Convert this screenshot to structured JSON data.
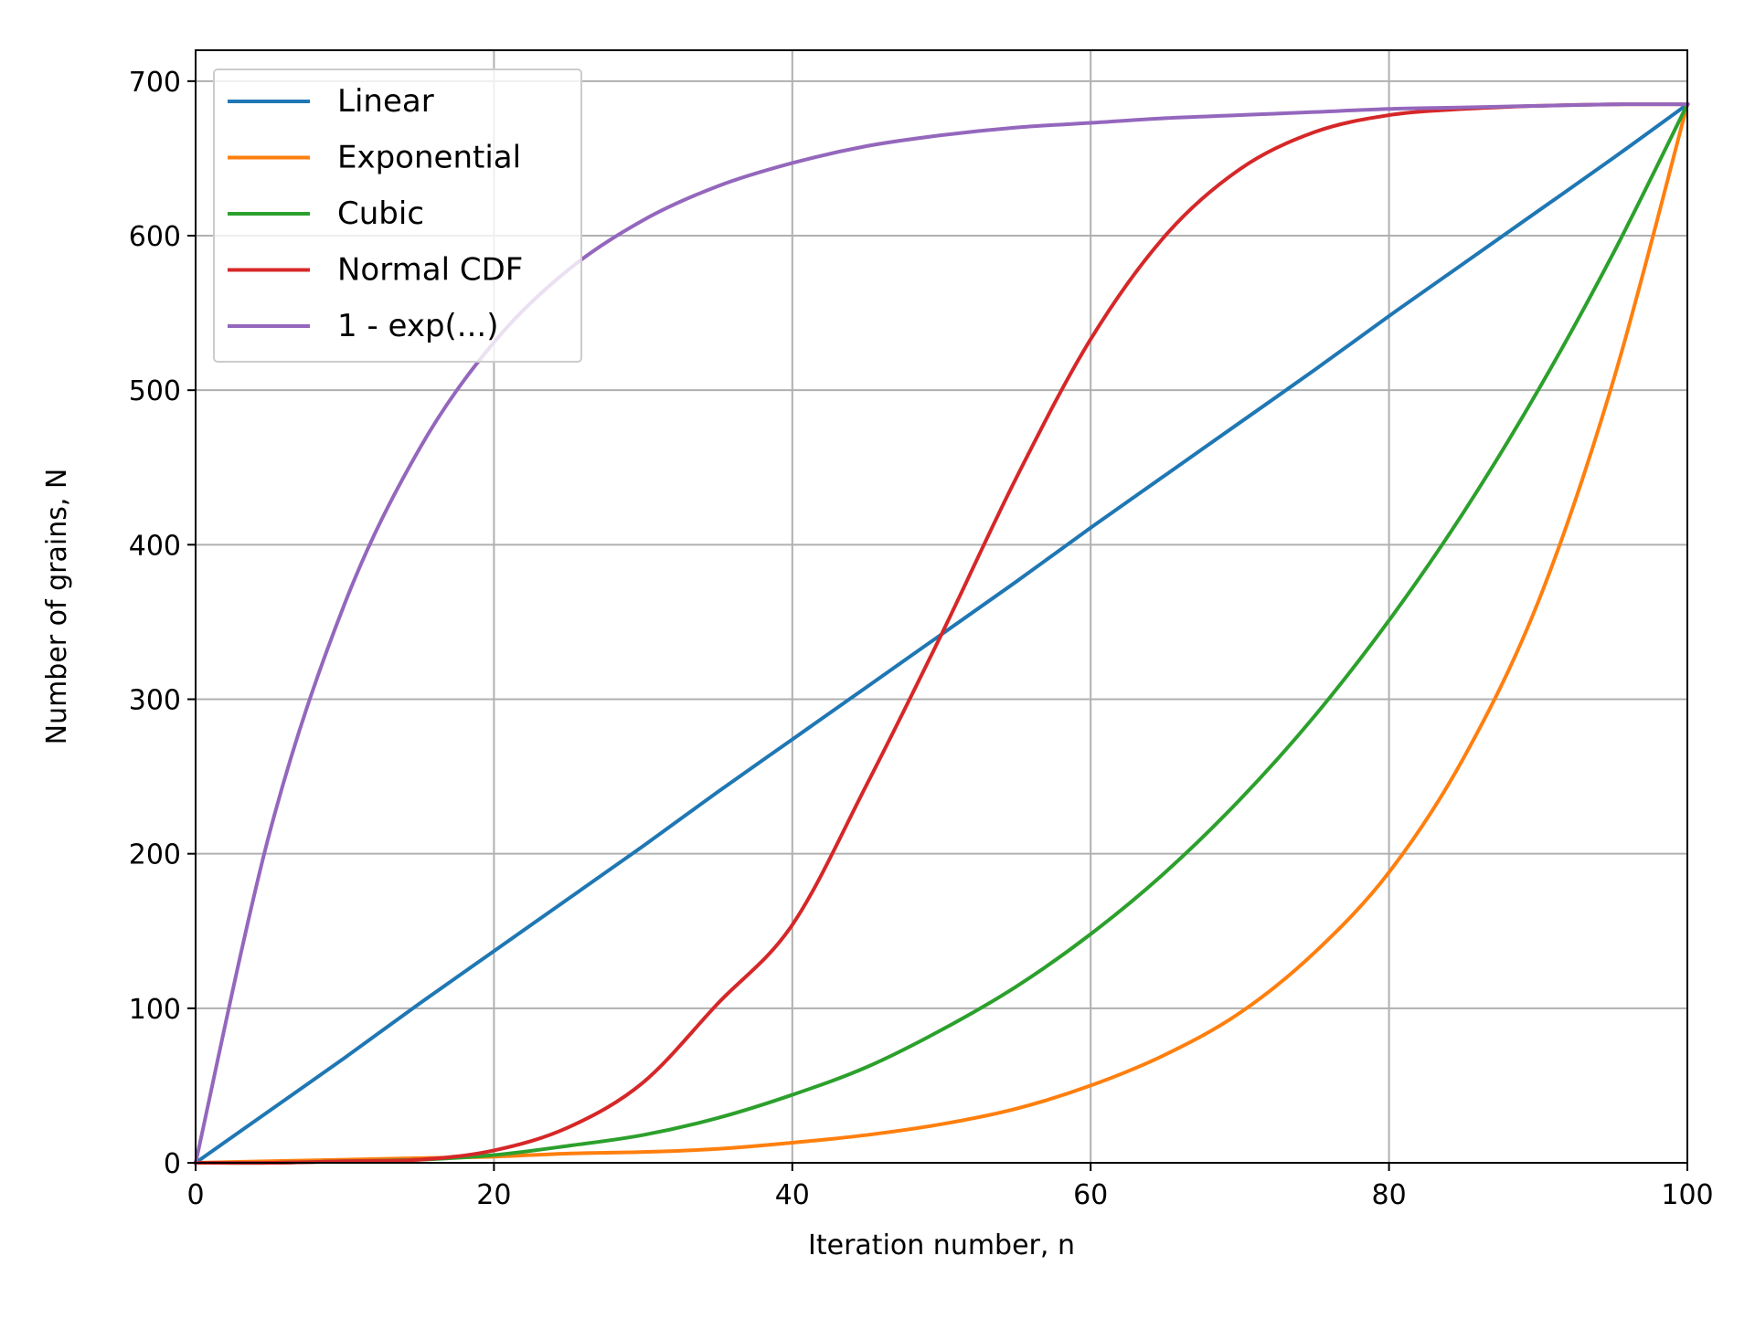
{
  "chart_data": {
    "type": "line",
    "title": "",
    "xlabel": "Iteration number, n",
    "ylabel": "Number of grains, N",
    "xlim": [
      0,
      100
    ],
    "ylim": [
      0,
      720
    ],
    "x_ticks": [
      0,
      20,
      40,
      60,
      80,
      100
    ],
    "y_ticks": [
      0,
      100,
      200,
      300,
      400,
      500,
      600,
      700
    ],
    "x_tick_labels": [
      "0",
      "20",
      "40",
      "60",
      "80",
      "100"
    ],
    "y_tick_labels": [
      "0",
      "100",
      "200",
      "300",
      "400",
      "500",
      "600",
      "700"
    ],
    "grid": true,
    "legend_position": "top-left",
    "x": [
      0,
      5,
      10,
      15,
      20,
      25,
      30,
      35,
      40,
      45,
      50,
      55,
      60,
      65,
      70,
      75,
      80,
      85,
      90,
      95,
      100
    ],
    "series": [
      {
        "name": "Linear",
        "color": "#1f77b4",
        "values": [
          0,
          34,
          68,
          103,
          137,
          171,
          205,
          240,
          274,
          308,
          342,
          376,
          411,
          445,
          479,
          513,
          548,
          582,
          616,
          650,
          685
        ]
      },
      {
        "name": "Exponential",
        "color": "#ff7f0e",
        "values": [
          0,
          1,
          2,
          3,
          4,
          6,
          7,
          9,
          13,
          18,
          25,
          35,
          50,
          70,
          97,
          136,
          188,
          262,
          363,
          505,
          685
        ]
      },
      {
        "name": "Cubic",
        "color": "#2ca02c",
        "values": [
          0,
          0,
          1,
          2,
          5,
          11,
          18,
          29,
          44,
          62,
          86,
          114,
          148,
          188,
          235,
          289,
          351,
          421,
          500,
          588,
          685
        ]
      },
      {
        "name": "Normal CDF",
        "color": "#d62728",
        "values": [
          0,
          0,
          1,
          2,
          8,
          23,
          52,
          103,
          154,
          245,
          342,
          443,
          533,
          600,
          643,
          667,
          678,
          682,
          684,
          685,
          685
        ]
      },
      {
        "name": "1 - exp(...)",
        "color": "#9467bd",
        "values": [
          0,
          215,
          362,
          462,
          531,
          578,
          610,
          632,
          647,
          658,
          665,
          670,
          673,
          676,
          678,
          680,
          682,
          683,
          684,
          685,
          685
        ]
      }
    ]
  }
}
